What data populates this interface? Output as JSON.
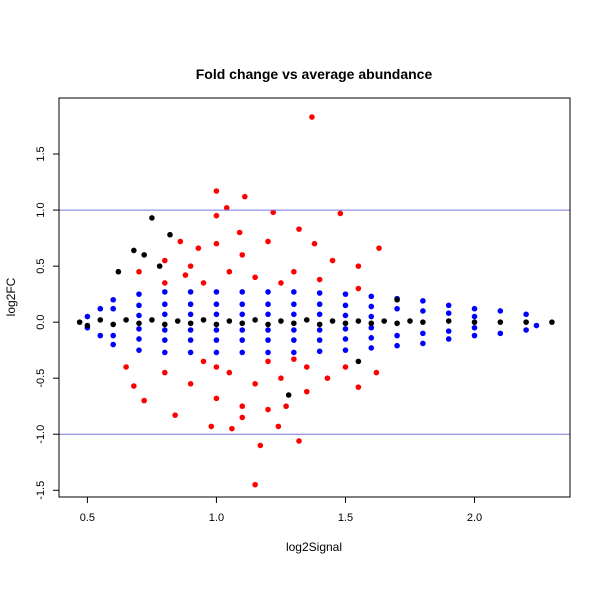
{
  "chart_data": {
    "type": "scatter",
    "title": "Fold change vs average abundance",
    "xlabel": "log2Signal",
    "ylabel": "log2FC",
    "xlim": [
      0.39,
      2.37
    ],
    "ylim": [
      -1.56,
      2.0
    ],
    "xticks": [
      "0.5",
      "1.0",
      "1.5",
      "2.0"
    ],
    "yticks": [
      "-1.5",
      "-1.0",
      "-0.5",
      "0.0",
      "0.5",
      "1.0",
      "1.5"
    ],
    "hlines": [
      1.0,
      -1.0
    ],
    "hline_color": "#7777dd",
    "grid": false,
    "series": [
      {
        "color": "#ff0000",
        "points": [
          [
            1.37,
            1.83
          ],
          [
            1.0,
            1.17
          ],
          [
            1.11,
            1.12
          ],
          [
            1.04,
            1.02
          ],
          [
            1.0,
            0.95
          ],
          [
            1.48,
            0.97
          ],
          [
            1.22,
            0.98
          ],
          [
            1.09,
            0.8
          ],
          [
            1.32,
            0.83
          ],
          [
            1.38,
            0.7
          ],
          [
            1.0,
            0.7
          ],
          [
            0.86,
            0.72
          ],
          [
            0.93,
            0.66
          ],
          [
            1.63,
            0.66
          ],
          [
            1.55,
            0.5
          ],
          [
            1.2,
            0.72
          ],
          [
            1.1,
            0.6
          ],
          [
            0.8,
            0.55
          ],
          [
            1.45,
            0.55
          ],
          [
            0.9,
            0.5
          ],
          [
            1.3,
            0.45
          ],
          [
            1.05,
            0.45
          ],
          [
            0.7,
            0.45
          ],
          [
            1.55,
            0.3
          ],
          [
            1.25,
            0.35
          ],
          [
            0.95,
            0.35
          ],
          [
            0.8,
            0.35
          ],
          [
            1.4,
            0.38
          ],
          [
            1.15,
            0.4
          ],
          [
            0.88,
            0.42
          ],
          [
            1.15,
            -1.45
          ],
          [
            1.17,
            -1.1
          ],
          [
            1.32,
            -1.06
          ],
          [
            1.24,
            -0.93
          ],
          [
            0.98,
            -0.93
          ],
          [
            1.06,
            -0.95
          ],
          [
            1.1,
            -0.85
          ],
          [
            0.84,
            -0.83
          ],
          [
            1.1,
            -0.75
          ],
          [
            1.2,
            -0.78
          ],
          [
            1.27,
            -0.75
          ],
          [
            0.72,
            -0.7
          ],
          [
            1.0,
            -0.68
          ],
          [
            1.35,
            -0.62
          ],
          [
            0.68,
            -0.57
          ],
          [
            1.55,
            -0.58
          ],
          [
            1.62,
            -0.45
          ],
          [
            1.43,
            -0.5
          ],
          [
            0.9,
            -0.55
          ],
          [
            1.15,
            -0.55
          ],
          [
            1.25,
            -0.5
          ],
          [
            0.65,
            -0.4
          ],
          [
            1.05,
            -0.45
          ],
          [
            0.8,
            -0.45
          ],
          [
            1.35,
            -0.4
          ],
          [
            1.5,
            -0.4
          ],
          [
            0.95,
            -0.35
          ],
          [
            1.2,
            -0.35
          ],
          [
            1.0,
            -0.4
          ],
          [
            1.3,
            -0.33
          ]
        ]
      },
      {
        "color": "#0000ff",
        "points": [
          [
            0.5,
            0.05
          ],
          [
            0.5,
            -0.05
          ],
          [
            0.55,
            0.12
          ],
          [
            0.55,
            -0.12
          ],
          [
            0.6,
            0.2
          ],
          [
            0.6,
            0.12
          ],
          [
            0.6,
            -0.12
          ],
          [
            0.6,
            -0.2
          ],
          [
            0.7,
            0.25
          ],
          [
            0.7,
            0.15
          ],
          [
            0.7,
            0.06
          ],
          [
            0.7,
            -0.06
          ],
          [
            0.7,
            -0.15
          ],
          [
            0.7,
            -0.25
          ],
          [
            0.8,
            0.27
          ],
          [
            0.8,
            0.16
          ],
          [
            0.8,
            0.07
          ],
          [
            0.8,
            -0.07
          ],
          [
            0.8,
            -0.16
          ],
          [
            0.8,
            -0.27
          ],
          [
            0.9,
            0.27
          ],
          [
            0.9,
            0.16
          ],
          [
            0.9,
            0.07
          ],
          [
            0.9,
            -0.07
          ],
          [
            0.9,
            -0.16
          ],
          [
            0.9,
            -0.27
          ],
          [
            1.0,
            0.27
          ],
          [
            1.0,
            0.16
          ],
          [
            1.0,
            0.07
          ],
          [
            1.0,
            -0.07
          ],
          [
            1.0,
            -0.16
          ],
          [
            1.0,
            -0.27
          ],
          [
            1.1,
            0.27
          ],
          [
            1.1,
            0.16
          ],
          [
            1.1,
            0.07
          ],
          [
            1.1,
            -0.07
          ],
          [
            1.1,
            -0.16
          ],
          [
            1.1,
            -0.27
          ],
          [
            1.2,
            0.27
          ],
          [
            1.2,
            0.16
          ],
          [
            1.2,
            0.07
          ],
          [
            1.2,
            -0.07
          ],
          [
            1.2,
            -0.16
          ],
          [
            1.2,
            -0.27
          ],
          [
            1.3,
            0.27
          ],
          [
            1.3,
            0.16
          ],
          [
            1.3,
            0.07
          ],
          [
            1.3,
            -0.07
          ],
          [
            1.3,
            -0.16
          ],
          [
            1.3,
            -0.27
          ],
          [
            1.4,
            0.26
          ],
          [
            1.4,
            0.16
          ],
          [
            1.4,
            0.07
          ],
          [
            1.4,
            -0.07
          ],
          [
            1.4,
            -0.16
          ],
          [
            1.4,
            -0.26
          ],
          [
            1.5,
            0.25
          ],
          [
            1.5,
            0.15
          ],
          [
            1.5,
            0.06
          ],
          [
            1.5,
            -0.06
          ],
          [
            1.5,
            -0.15
          ],
          [
            1.5,
            -0.25
          ],
          [
            1.6,
            0.23
          ],
          [
            1.6,
            0.14
          ],
          [
            1.6,
            0.05
          ],
          [
            1.6,
            -0.05
          ],
          [
            1.6,
            -0.14
          ],
          [
            1.6,
            -0.23
          ],
          [
            1.7,
            0.21
          ],
          [
            1.7,
            0.12
          ],
          [
            1.7,
            -0.12
          ],
          [
            1.7,
            -0.21
          ],
          [
            1.8,
            0.19
          ],
          [
            1.8,
            0.1
          ],
          [
            1.8,
            -0.1
          ],
          [
            1.8,
            -0.19
          ],
          [
            1.9,
            0.15
          ],
          [
            1.9,
            0.08
          ],
          [
            1.9,
            -0.08
          ],
          [
            1.9,
            -0.15
          ],
          [
            2.0,
            0.12
          ],
          [
            2.0,
            0.05
          ],
          [
            2.0,
            -0.05
          ],
          [
            2.0,
            -0.12
          ],
          [
            2.1,
            0.1
          ],
          [
            2.1,
            -0.1
          ],
          [
            2.2,
            0.07
          ],
          [
            2.2,
            -0.07
          ],
          [
            2.24,
            -0.03
          ]
        ]
      },
      {
        "color": "#000000",
        "points": [
          [
            0.75,
            0.93
          ],
          [
            0.68,
            0.64
          ],
          [
            0.72,
            0.6
          ],
          [
            0.82,
            0.78
          ],
          [
            0.62,
            0.45
          ],
          [
            0.78,
            0.5
          ],
          [
            1.7,
            0.2
          ],
          [
            2.3,
            0.0
          ],
          [
            1.28,
            -0.65
          ],
          [
            1.55,
            -0.35
          ],
          [
            0.47,
            0.0
          ],
          [
            0.5,
            -0.03
          ],
          [
            0.55,
            0.02
          ],
          [
            0.6,
            -0.02
          ],
          [
            0.65,
            0.02
          ],
          [
            0.7,
            -0.01
          ],
          [
            0.75,
            0.02
          ],
          [
            0.8,
            -0.02
          ],
          [
            0.85,
            0.01
          ],
          [
            0.9,
            -0.01
          ],
          [
            0.95,
            0.02
          ],
          [
            1.0,
            -0.02
          ],
          [
            1.05,
            0.01
          ],
          [
            1.1,
            -0.01
          ],
          [
            1.15,
            0.02
          ],
          [
            1.2,
            -0.02
          ],
          [
            1.25,
            0.01
          ],
          [
            1.3,
            -0.01
          ],
          [
            1.35,
            0.02
          ],
          [
            1.4,
            -0.02
          ],
          [
            1.45,
            0.01
          ],
          [
            1.5,
            -0.01
          ],
          [
            1.55,
            0.01
          ],
          [
            1.6,
            -0.01
          ],
          [
            1.65,
            0.01
          ],
          [
            1.7,
            -0.01
          ],
          [
            1.75,
            0.01
          ],
          [
            1.8,
            0.0
          ],
          [
            1.9,
            0.01
          ],
          [
            2.0,
            0.0
          ],
          [
            2.1,
            0.0
          ],
          [
            2.2,
            0.0
          ]
        ]
      }
    ]
  }
}
